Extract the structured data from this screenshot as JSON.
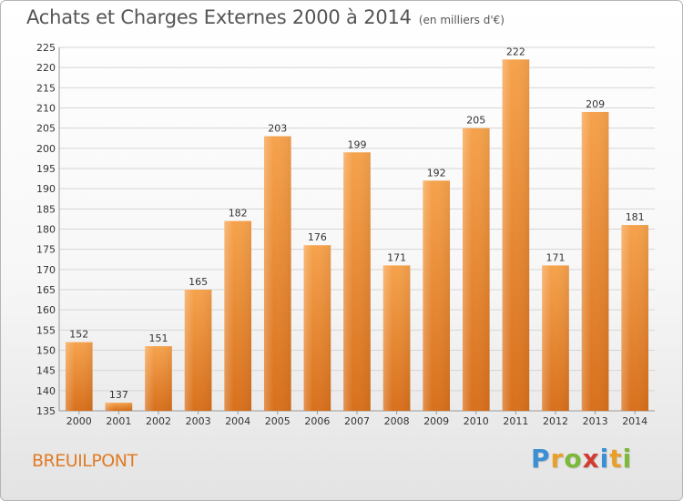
{
  "header": {
    "title": "Achats et Charges Externes 2000 à 2014",
    "subtitle": "(en milliers d'€)"
  },
  "footer": {
    "town": "BREUILPONT",
    "logo_letters": [
      {
        "char": "P",
        "color": "#3b8fd4"
      },
      {
        "char": "r",
        "color": "#e8a02a"
      },
      {
        "char": "o",
        "color": "#7cb83a"
      },
      {
        "char": "x",
        "color": "#d23b32"
      },
      {
        "char": "i",
        "color": "#3b8fd4"
      },
      {
        "char": "t",
        "color": "#e8a02a"
      },
      {
        "char": "i",
        "color": "#7cb83a"
      }
    ]
  },
  "chart_data": {
    "type": "bar",
    "categories": [
      "2000",
      "2001",
      "2002",
      "2003",
      "2004",
      "2005",
      "2006",
      "2007",
      "2008",
      "2009",
      "2010",
      "2011",
      "2012",
      "2013",
      "2014"
    ],
    "values": [
      152,
      137,
      151,
      165,
      182,
      203,
      176,
      199,
      171,
      192,
      205,
      222,
      171,
      209,
      181
    ],
    "title": "Achats et Charges Externes 2000 à 2014",
    "xlabel": "",
    "ylabel": "",
    "ylim": [
      135,
      225
    ],
    "yticks": [
      135,
      140,
      145,
      150,
      155,
      160,
      165,
      170,
      175,
      180,
      185,
      190,
      195,
      200,
      205,
      210,
      215,
      220,
      225
    ],
    "grid": true,
    "bar_color": "#f0922e"
  }
}
